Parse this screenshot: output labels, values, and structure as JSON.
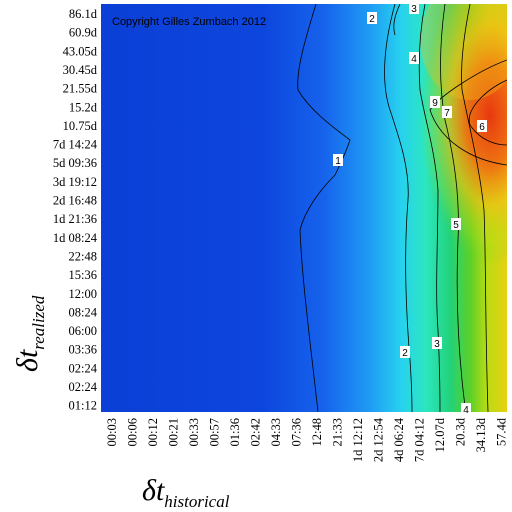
{
  "chart_data": {
    "type": "heatmap",
    "copyright": "Copyright Gilles Zumbach 2012",
    "xlabel": {
      "symbol": "δt",
      "subscript": "historical"
    },
    "ylabel": {
      "symbol": "δt",
      "subscript": "realized"
    },
    "x_ticks": [
      "00:03",
      "00:06",
      "00:12",
      "00:21",
      "00:33",
      "00:57",
      "01:36",
      "02:42",
      "04:33",
      "07:36",
      "12:48",
      "21:33",
      "1d 12:12",
      "2d 12:54",
      "4d 06:24",
      "7d 04:12",
      "12.07d",
      "20.3d",
      "34.13d",
      "57.4d"
    ],
    "y_ticks": [
      "86.1d",
      "60.9d",
      "43.05d",
      "30.45d",
      "21.55d",
      "15.2d",
      "10.75d",
      "7d 14:24",
      "5d 09:36",
      "3d 19:12",
      "2d 16:48",
      "1d 21:36",
      "1d 08:24",
      "22:48",
      "15:36",
      "12:00",
      "08:24",
      "06:00",
      "03:36",
      "02:24",
      "02:24",
      "01:12"
    ],
    "colorscale": [
      "#0a3ed8",
      "#1456e8",
      "#1e8ef4",
      "#25c8f0",
      "#2ee6c8",
      "#22d080",
      "#1ec43c",
      "#9adc18",
      "#f0e010",
      "#f8a010",
      "#f06010",
      "#e83010"
    ],
    "contour_labels": [
      "2",
      "3",
      "4",
      "9",
      "7",
      "6",
      "1",
      "5",
      "2",
      "3",
      "4"
    ]
  }
}
